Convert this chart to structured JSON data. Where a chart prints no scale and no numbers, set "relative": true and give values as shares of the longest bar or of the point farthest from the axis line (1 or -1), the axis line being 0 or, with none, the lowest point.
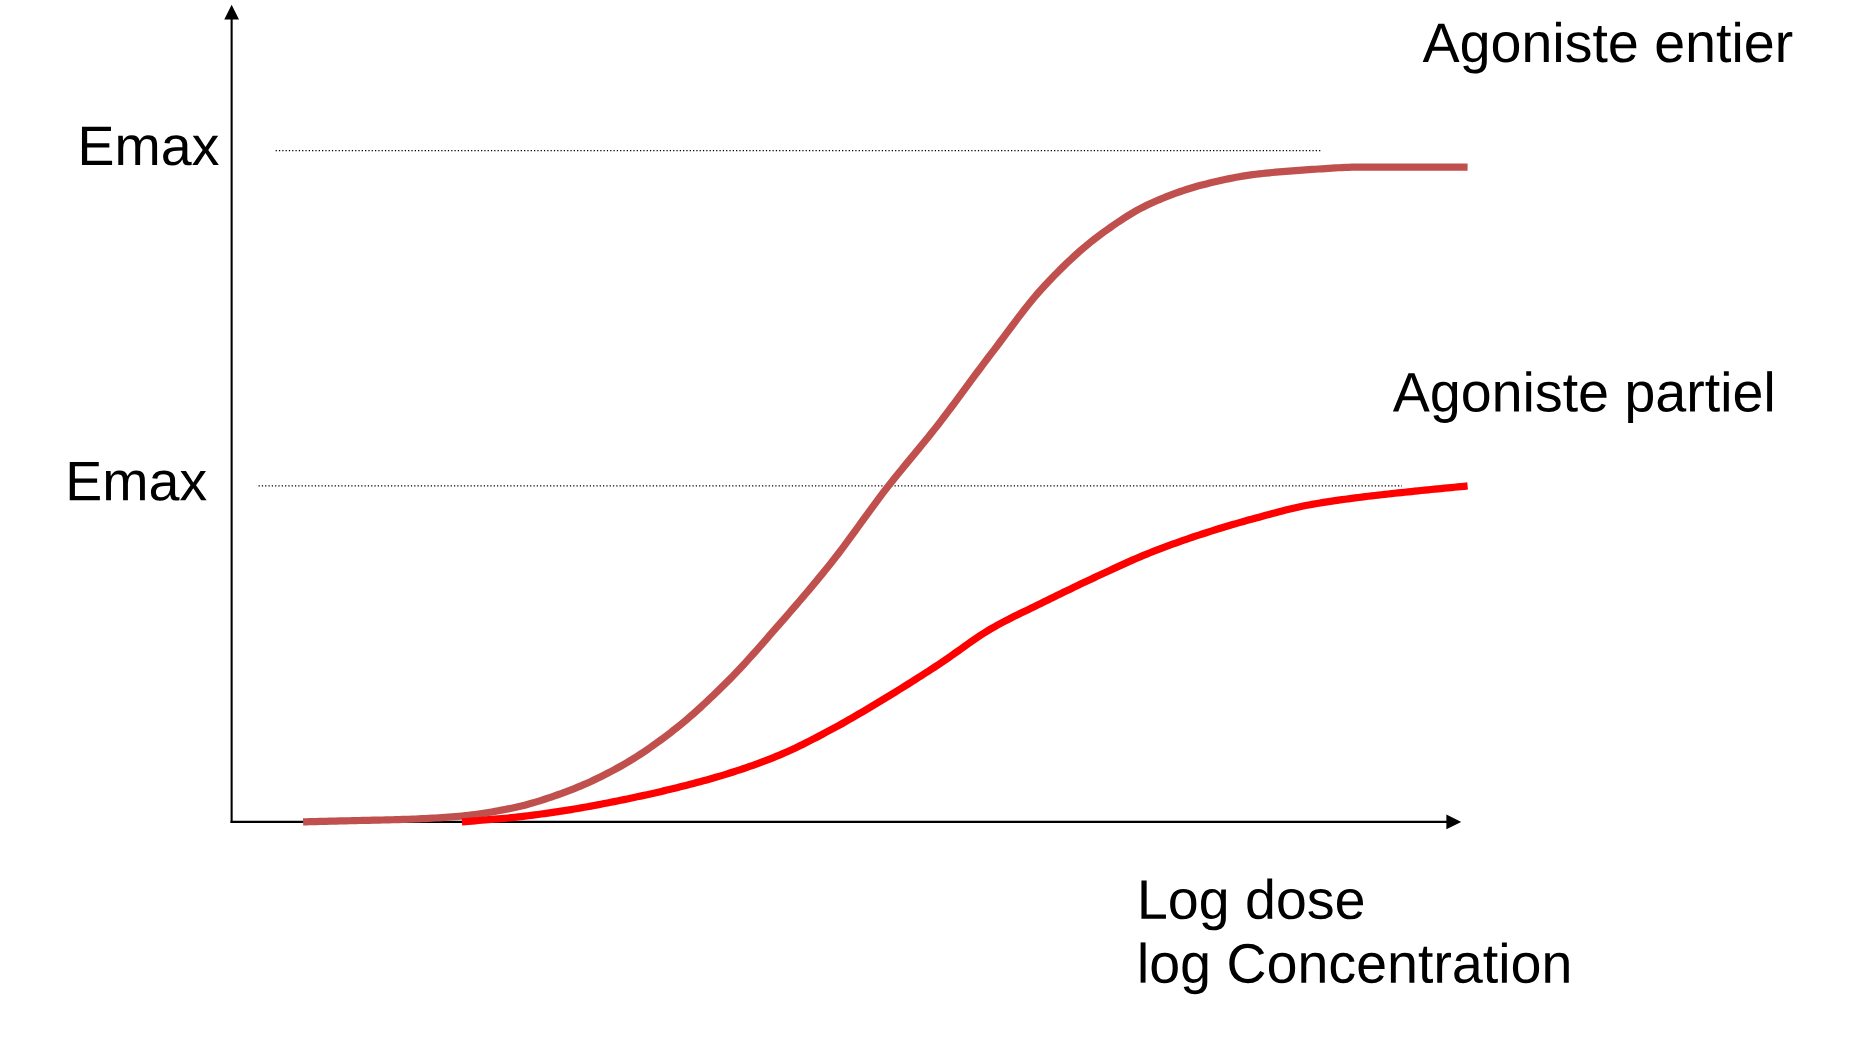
{
  "chart_data": {
    "type": "line",
    "relative": true,
    "xlabel": "Log dose\nlog Concentration",
    "categories": [
      null,
      null,
      null,
      null,
      null,
      null,
      null,
      null,
      null,
      null,
      null,
      null,
      null,
      null,
      null,
      null,
      null,
      null,
      null,
      null,
      null,
      null,
      null
    ],
    "series": [
      {
        "name": "Agoniste entier",
        "color": "#c0504d",
        "values": [
          0,
          0.002,
          0.004,
          0.009,
          0.022,
          0.047,
          0.085,
          0.14,
          0.213,
          0.302,
          0.398,
          0.507,
          0.607,
          0.715,
          0.818,
          0.893,
          0.944,
          0.973,
          0.989,
          0.996,
          1,
          1,
          1
        ]
      },
      {
        "name": "Agoniste partiel",
        "color": "#ff0000",
        "values": [
          null,
          null,
          null,
          0,
          0.007,
          0.018,
          0.033,
          0.051,
          0.073,
          0.102,
          0.142,
          0.189,
          0.24,
          0.295,
          0.336,
          0.375,
          0.411,
          0.44,
          0.464,
          0.484,
          0.496,
          0.505,
          0.513
        ]
      }
    ],
    "ref_lines": [
      {
        "axis": "y",
        "value": 1.025,
        "label": "Emax",
        "color": "#000000",
        "line_style": "dotted"
      },
      {
        "axis": "y",
        "value": 0.513,
        "label": "Emax",
        "color": "#000000",
        "line_style": "dotted"
      }
    ],
    "marker": "none",
    "line_style": "solid"
  }
}
